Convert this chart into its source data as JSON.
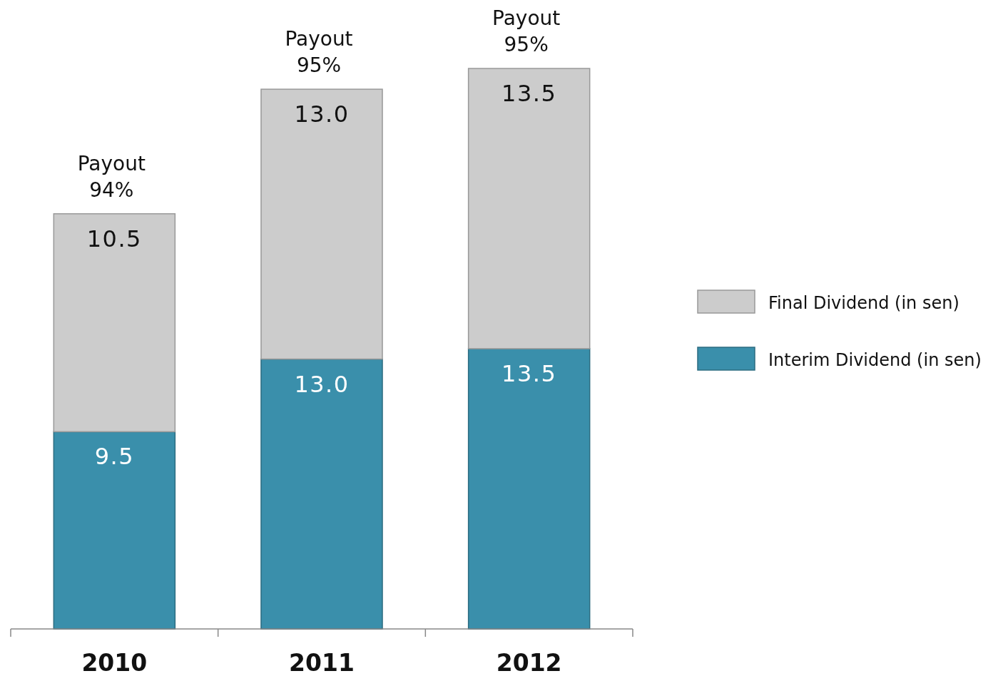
{
  "chart_data": {
    "type": "bar",
    "stacked": true,
    "legend": "right",
    "categories": [
      "2010",
      "2011",
      "2012"
    ],
    "series": [
      {
        "name": "Interim Dividend (in sen)",
        "color": "#3a8fab",
        "values": [
          9.5,
          13.0,
          13.5
        ],
        "value_labels": [
          "9.5",
          "13.0",
          "13.5"
        ]
      },
      {
        "name": "Final Dividend (in sen)",
        "color": "#cccccc",
        "values": [
          10.5,
          13.0,
          13.5
        ],
        "value_labels": [
          "10.5",
          "13.0",
          "13.5"
        ]
      }
    ],
    "annotations": [
      {
        "text": "Payout\n94%",
        "x": "2010",
        "y": 20
      },
      {
        "text": "Payout\n95%",
        "x": "2011",
        "y": 26
      },
      {
        "text": "Payout\n95%",
        "x": "2012",
        "y": 27
      }
    ]
  }
}
